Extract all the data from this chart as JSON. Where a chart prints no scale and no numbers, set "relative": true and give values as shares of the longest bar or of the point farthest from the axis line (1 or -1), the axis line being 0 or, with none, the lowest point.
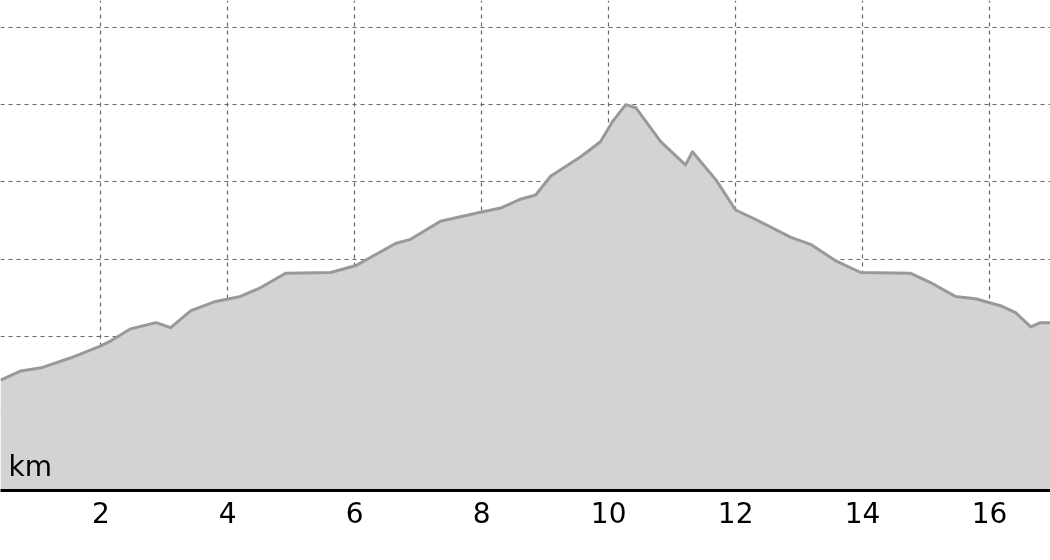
{
  "chart_data": {
    "type": "area",
    "relative": true,
    "xlabel": "km",
    "xlim": [
      0.42,
      16.96
    ],
    "xticks": [
      2,
      4,
      6,
      8,
      10,
      12,
      14,
      16
    ],
    "grid": true,
    "x": [
      0.42,
      0.74,
      1.06,
      1.53,
      2.0,
      2.16,
      2.47,
      2.87,
      3.1,
      3.42,
      3.81,
      4.2,
      4.52,
      4.91,
      5.62,
      6.02,
      6.65,
      6.88,
      7.35,
      7.98,
      8.3,
      8.61,
      8.85,
      9.09,
      9.56,
      9.87,
      10.06,
      10.27,
      10.43,
      10.82,
      11.21,
      11.32,
      11.45,
      11.69,
      12.0,
      12.31,
      12.87,
      13.18,
      13.57,
      13.97,
      14.76,
      15.07,
      15.46,
      15.78,
      16.17,
      16.41,
      16.65,
      16.8,
      16.96
    ],
    "series": [
      {
        "color": "#999999",
        "values": [
          0.286,
          0.31,
          0.318,
          0.344,
          0.375,
          0.388,
          0.419,
          0.435,
          0.422,
          0.466,
          0.49,
          0.503,
          0.526,
          0.563,
          0.565,
          0.583,
          0.641,
          0.651,
          0.698,
          0.721,
          0.732,
          0.755,
          0.766,
          0.815,
          0.865,
          0.904,
          0.956,
          1.0,
          0.992,
          0.904,
          0.844,
          0.878,
          0.852,
          0.805,
          0.727,
          0.703,
          0.656,
          0.638,
          0.596,
          0.565,
          0.563,
          0.539,
          0.503,
          0.497,
          0.479,
          0.461,
          0.424,
          0.435,
          0.435
        ]
      }
    ]
  }
}
